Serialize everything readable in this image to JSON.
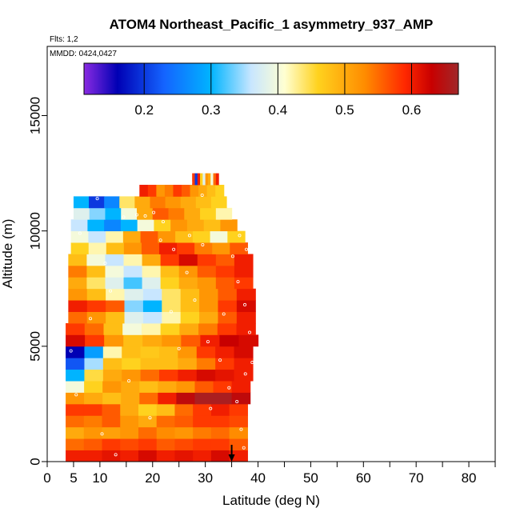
{
  "chart_data": {
    "type": "heatmap",
    "title": "ATOM4 Northeast_Pacific_1 asymmetry_937_AMP",
    "flights_label": "Flts: 1,2",
    "mmdd_label": "MMDD: 0424,0427",
    "xlabel": "Latitude (deg N)",
    "ylabel": "Altitude (m)",
    "xlim": [
      0,
      85
    ],
    "ylim": [
      0,
      18000
    ],
    "x_ticks": [
      0,
      5,
      10,
      20,
      30,
      40,
      50,
      60,
      70,
      80
    ],
    "x_tick_labels": [
      "0",
      "5",
      "10",
      "20",
      "30",
      "40",
      "50",
      "60",
      "70",
      "80"
    ],
    "x_minor_ticks": [
      15,
      25,
      35,
      45,
      55,
      65,
      75,
      85
    ],
    "y_ticks": [
      0,
      5000,
      10000,
      15000
    ],
    "y_tick_labels": [
      "0",
      "5000",
      "10000",
      "15000"
    ],
    "colorbar": {
      "range": [
        0.11,
        0.67
      ],
      "ticks": [
        0.2,
        0.3,
        0.4,
        0.5,
        0.6
      ],
      "tick_labels": [
        "0.2",
        "0.3",
        "0.4",
        "0.5",
        "0.6"
      ],
      "stops": [
        {
          "v": 0.11,
          "color": "#8a2be2"
        },
        {
          "v": 0.16,
          "color": "#0000b4"
        },
        {
          "v": 0.23,
          "color": "#1464ff"
        },
        {
          "v": 0.3,
          "color": "#00b4ff"
        },
        {
          "v": 0.36,
          "color": "#c8e6ff"
        },
        {
          "v": 0.41,
          "color": "#ffffd2"
        },
        {
          "v": 0.46,
          "color": "#ffd21e"
        },
        {
          "v": 0.53,
          "color": "#ff8c00"
        },
        {
          "v": 0.59,
          "color": "#ff2800"
        },
        {
          "v": 0.63,
          "color": "#c80000"
        },
        {
          "v": 0.67,
          "color": "#a0282a"
        }
      ]
    },
    "bands": [
      {
        "alt": 250,
        "lat": [
          3.5,
          38
        ],
        "v": [
          0.6,
          0.6,
          0.61,
          0.6,
          0.62,
          0.6,
          0.61,
          0.6,
          0.62,
          0.6
        ]
      },
      {
        "alt": 750,
        "lat": [
          3.5,
          38
        ],
        "v": [
          0.55,
          0.56,
          0.58,
          0.57,
          0.58,
          0.56,
          0.57,
          0.58,
          0.58,
          0.56
        ]
      },
      {
        "alt": 1250,
        "lat": [
          3.5,
          38
        ],
        "v": [
          0.5,
          0.52,
          0.51,
          0.52,
          0.55,
          0.53,
          0.52,
          0.54,
          0.55,
          0.53
        ]
      },
      {
        "alt": 1750,
        "lat": [
          3.5,
          38
        ],
        "v": [
          0.55,
          0.54,
          0.56,
          0.52,
          0.5,
          0.55,
          0.56,
          0.58,
          0.58,
          0.57
        ]
      },
      {
        "alt": 2250,
        "lat": [
          3.5,
          38
        ],
        "v": [
          0.58,
          0.58,
          0.56,
          0.5,
          0.46,
          0.48,
          0.55,
          0.58,
          0.6,
          0.58
        ]
      },
      {
        "alt": 2750,
        "lat": [
          3.5,
          38.5
        ],
        "v": [
          0.52,
          0.5,
          0.48,
          0.5,
          0.55,
          0.6,
          0.64,
          0.66,
          0.66,
          0.64
        ]
      },
      {
        "alt": 3250,
        "lat": [
          3.5,
          38.5
        ],
        "v": [
          0.4,
          0.46,
          0.52,
          0.5,
          0.48,
          0.5,
          0.52,
          0.56,
          0.58,
          0.6
        ]
      },
      {
        "alt": 3750,
        "lat": [
          3.5,
          39
        ],
        "v": [
          0.3,
          0.45,
          0.5,
          0.52,
          0.55,
          0.58,
          0.6,
          0.62,
          0.61,
          0.6
        ]
      },
      {
        "alt": 4250,
        "lat": [
          3.5,
          39
        ],
        "v": [
          0.22,
          0.35,
          0.48,
          0.46,
          0.48,
          0.48,
          0.5,
          0.54,
          0.58,
          0.6
        ]
      },
      {
        "alt": 4750,
        "lat": [
          3.5,
          39
        ],
        "v": [
          0.16,
          0.28,
          0.42,
          0.48,
          0.47,
          0.48,
          0.52,
          0.58,
          0.6,
          0.62
        ]
      },
      {
        "alt": 5250,
        "lat": [
          3.5,
          40
        ],
        "v": [
          0.62,
          0.58,
          0.52,
          0.48,
          0.5,
          0.52,
          0.56,
          0.6,
          0.63,
          0.62
        ]
      },
      {
        "alt": 5750,
        "lat": [
          3.5,
          39.5
        ],
        "v": [
          0.58,
          0.55,
          0.48,
          0.4,
          0.42,
          0.46,
          0.5,
          0.54,
          0.58,
          0.6
        ]
      },
      {
        "alt": 6250,
        "lat": [
          4,
          39.5
        ],
        "v": [
          0.55,
          0.52,
          0.48,
          0.38,
          0.36,
          0.42,
          0.46,
          0.5,
          0.56,
          0.6
        ]
      },
      {
        "alt": 6750,
        "lat": [
          4,
          39.5
        ],
        "v": [
          0.6,
          0.58,
          0.56,
          0.34,
          0.3,
          0.44,
          0.48,
          0.52,
          0.58,
          0.62
        ]
      },
      {
        "alt": 7250,
        "lat": [
          4,
          39.5
        ],
        "v": [
          0.52,
          0.48,
          0.42,
          0.38,
          0.36,
          0.44,
          0.48,
          0.52,
          0.56,
          0.6
        ]
      },
      {
        "alt": 7750,
        "lat": [
          4,
          39
        ],
        "v": [
          0.5,
          0.44,
          0.38,
          0.32,
          0.38,
          0.46,
          0.5,
          0.52,
          0.56,
          0.58
        ]
      },
      {
        "alt": 8250,
        "lat": [
          4,
          39
        ],
        "v": [
          0.54,
          0.48,
          0.4,
          0.36,
          0.42,
          0.48,
          0.52,
          0.56,
          0.58,
          0.6
        ]
      },
      {
        "alt": 8750,
        "lat": [
          4,
          39
        ],
        "v": [
          0.48,
          0.4,
          0.36,
          0.42,
          0.5,
          0.58,
          0.62,
          0.58,
          0.56,
          0.6
        ]
      },
      {
        "alt": 9250,
        "lat": [
          4.5,
          38
        ],
        "v": [
          0.46,
          0.42,
          0.48,
          0.52,
          0.56,
          0.6,
          0.58,
          0.54,
          0.52,
          0.56
        ]
      },
      {
        "alt": 9750,
        "lat": [
          4.5,
          37.5
        ],
        "v": [
          0.4,
          0.36,
          0.42,
          0.5,
          0.56,
          0.52,
          0.48,
          0.46,
          0.4,
          0.46
        ]
      },
      {
        "alt": 10250,
        "lat": [
          4.5,
          36
        ],
        "v": [
          0.36,
          0.3,
          0.26,
          0.3,
          0.4,
          0.46,
          0.52,
          0.5,
          0.48,
          0.52
        ]
      },
      {
        "alt": 10750,
        "lat": [
          5,
          35
        ],
        "v": [
          0.38,
          0.34,
          0.3,
          0.4,
          0.5,
          0.56,
          0.54,
          0.5,
          0.46,
          0.42
        ]
      },
      {
        "alt": 11250,
        "lat": [
          5,
          34
        ],
        "v": [
          0.3,
          0.2,
          0.26,
          0.44,
          0.5,
          0.54,
          0.52,
          0.5,
          0.48,
          0.46
        ]
      },
      {
        "alt": 11750,
        "lat": [
          17.5,
          33.5
        ],
        "v": [
          0.6,
          0.58,
          0.52,
          0.54,
          0.58,
          0.56,
          0.52,
          0.5,
          0.48,
          0.46
        ]
      },
      {
        "alt": 12250,
        "lat": [
          27.5,
          32.5
        ],
        "v": [
          0.58,
          0.2,
          0.6,
          0.46,
          0.38,
          0.52,
          0.5,
          0.4,
          0.55,
          0.6
        ]
      }
    ],
    "sample_points": [
      [
        4.5,
        4800
      ],
      [
        5.5,
        2900
      ],
      [
        8.2,
        6200
      ],
      [
        9.5,
        11400
      ],
      [
        10.4,
        1200
      ],
      [
        12.0,
        7400
      ],
      [
        14.5,
        10600
      ],
      [
        17.0,
        10700
      ],
      [
        18.6,
        10650
      ],
      [
        20.2,
        10800
      ],
      [
        22.0,
        10400
      ],
      [
        21.5,
        9600
      ],
      [
        24.0,
        9200
      ],
      [
        27.0,
        9800
      ],
      [
        29.5,
        9400
      ],
      [
        26.5,
        8200
      ],
      [
        28.0,
        7000
      ],
      [
        30.5,
        5200
      ],
      [
        32.8,
        4400
      ],
      [
        34.5,
        3200
      ],
      [
        36.0,
        2600
      ],
      [
        36.8,
        1400
      ],
      [
        37.3,
        600
      ],
      [
        35.2,
        8900
      ],
      [
        36.2,
        7800
      ],
      [
        37.5,
        6800
      ],
      [
        38.4,
        5600
      ],
      [
        38.9,
        4300
      ],
      [
        37.8,
        9200
      ],
      [
        36.5,
        9800
      ],
      [
        37.6,
        3800
      ],
      [
        33.5,
        6400
      ],
      [
        31.0,
        2300
      ],
      [
        27.2,
        12100
      ],
      [
        29.4,
        11550
      ],
      [
        25.0,
        4900
      ],
      [
        15.5,
        3500
      ],
      [
        11.0,
        8600
      ],
      [
        6.2,
        9900
      ],
      [
        19.5,
        1900
      ],
      [
        23.5,
        6500
      ],
      [
        13.0,
        300
      ]
    ],
    "arrow_marker_lat": 35
  }
}
